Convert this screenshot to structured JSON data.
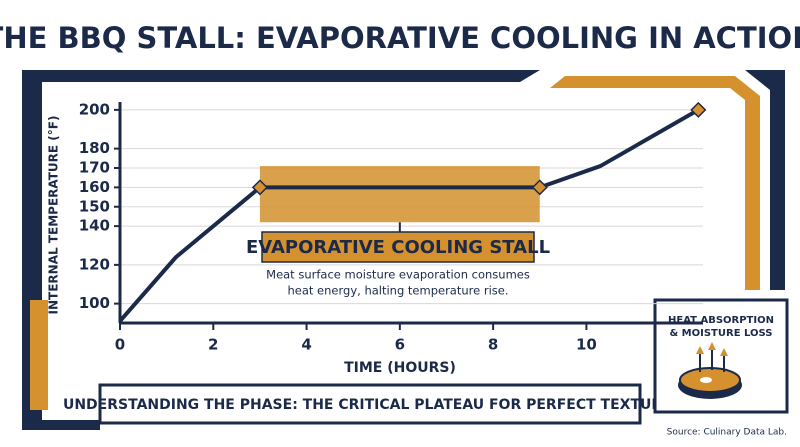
{
  "chart_data": {
    "type": "line",
    "title": "THE BBQ STALL: EVAPORATIVE COOLING IN ACTION",
    "y_label": "INTERNAL TEMPERATURE (°F)",
    "x_label": "TIME (HOURS)",
    "x": [
      0,
      1.2,
      3,
      9,
      10.3,
      12.4
    ],
    "series": [
      {
        "name": "Internal temperature",
        "color": "#1c2a4a",
        "values": [
          91,
          124,
          160,
          160,
          171,
          200
        ],
        "markers": [
          false,
          false,
          true,
          true,
          false,
          true
        ]
      }
    ],
    "marker_color": "#d4912e",
    "xlim": [
      0,
      12.5
    ],
    "xticks": [
      0,
      2,
      4,
      6,
      8,
      10
    ],
    "ylim": [
      90,
      202
    ],
    "yticks": [
      100,
      120,
      140,
      150,
      160,
      170,
      180,
      200
    ],
    "grid": true,
    "stall_band": {
      "x": [
        3,
        9
      ],
      "y": [
        142,
        171
      ],
      "color": "#d4912e"
    },
    "annotation": {
      "title": "EVAPORATIVE COOLING STALL",
      "lines": [
        "Meat surface moisture evaporation consumes",
        "heat energy, halting temperature rise."
      ]
    },
    "banner": "UNDERSTANDING THE PHASE: THE CRITICAL PLATEAU FOR PERFECT TEXTURE.",
    "icon_caption": [
      "HEAT ABSORPTION",
      "& MOISTURE LOSS"
    ],
    "source": "Source: Culinary Data Lab."
  }
}
